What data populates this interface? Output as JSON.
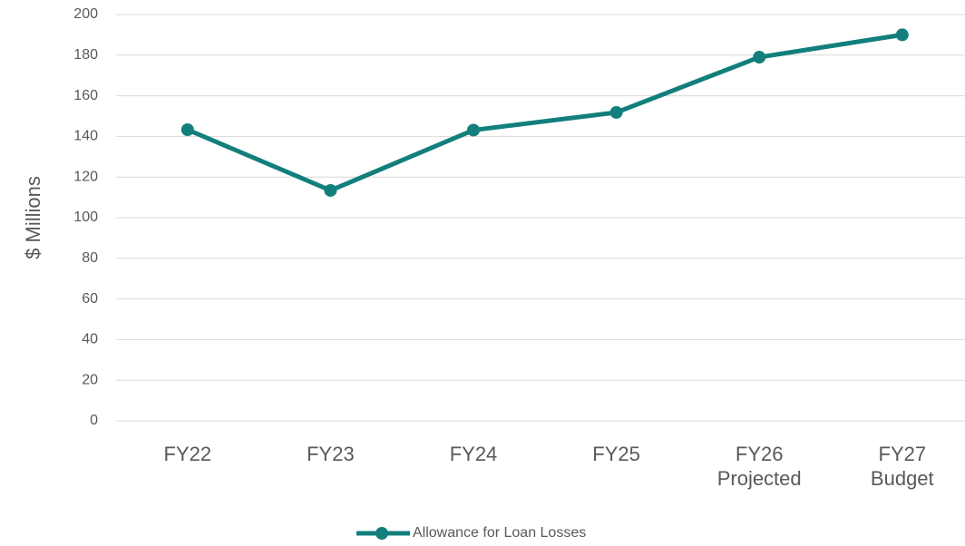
{
  "chart_data": {
    "type": "line",
    "y_label": "$ Millions",
    "categories": [
      "FY22",
      "FY23",
      "FY24",
      "FY25",
      "FY26 Projected",
      "FY27 Budget"
    ],
    "series": [
      {
        "name": "Allowance for Loan Losses",
        "color": "#127f7c",
        "values": [
          143.3,
          113.4,
          143.1,
          151.8,
          179,
          190
        ]
      }
    ],
    "ylim": [
      0,
      200
    ],
    "yticks": [
      0,
      20,
      40,
      60,
      80,
      100,
      120,
      140,
      160,
      180,
      200
    ],
    "grid": true,
    "legend": "bottom"
  }
}
